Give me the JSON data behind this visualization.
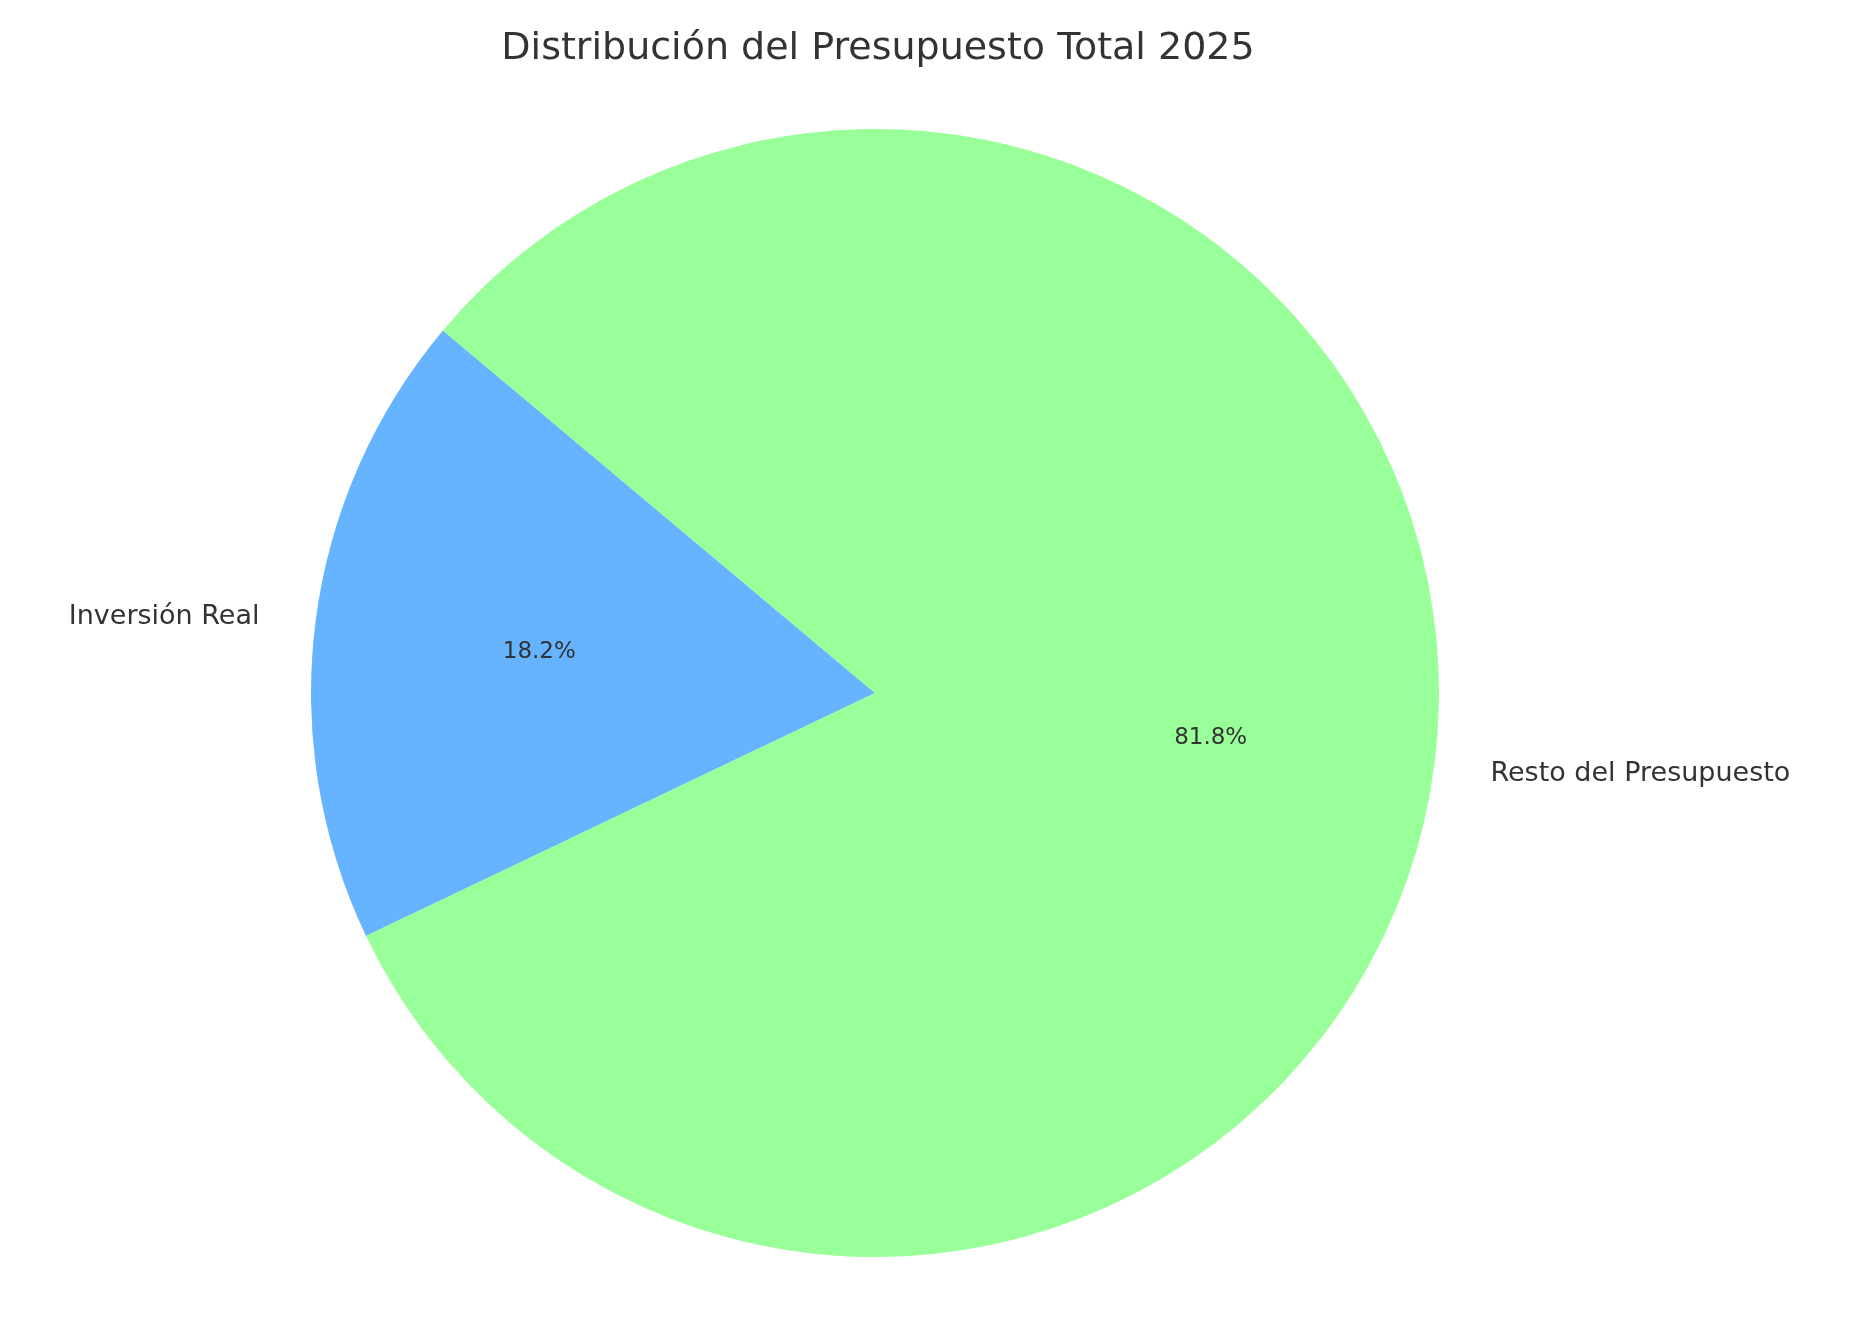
{
  "chart_data": {
    "type": "pie",
    "title": "Distribución del Presupuesto Total 2025",
    "categories": [
      "Inversión Real",
      "Resto del Presupuesto"
    ],
    "values": [
      18.2,
      81.8
    ],
    "colors": [
      "#66b3ff",
      "#99ff99"
    ],
    "value_labels": [
      "18.2%",
      "81.8%"
    ]
  }
}
